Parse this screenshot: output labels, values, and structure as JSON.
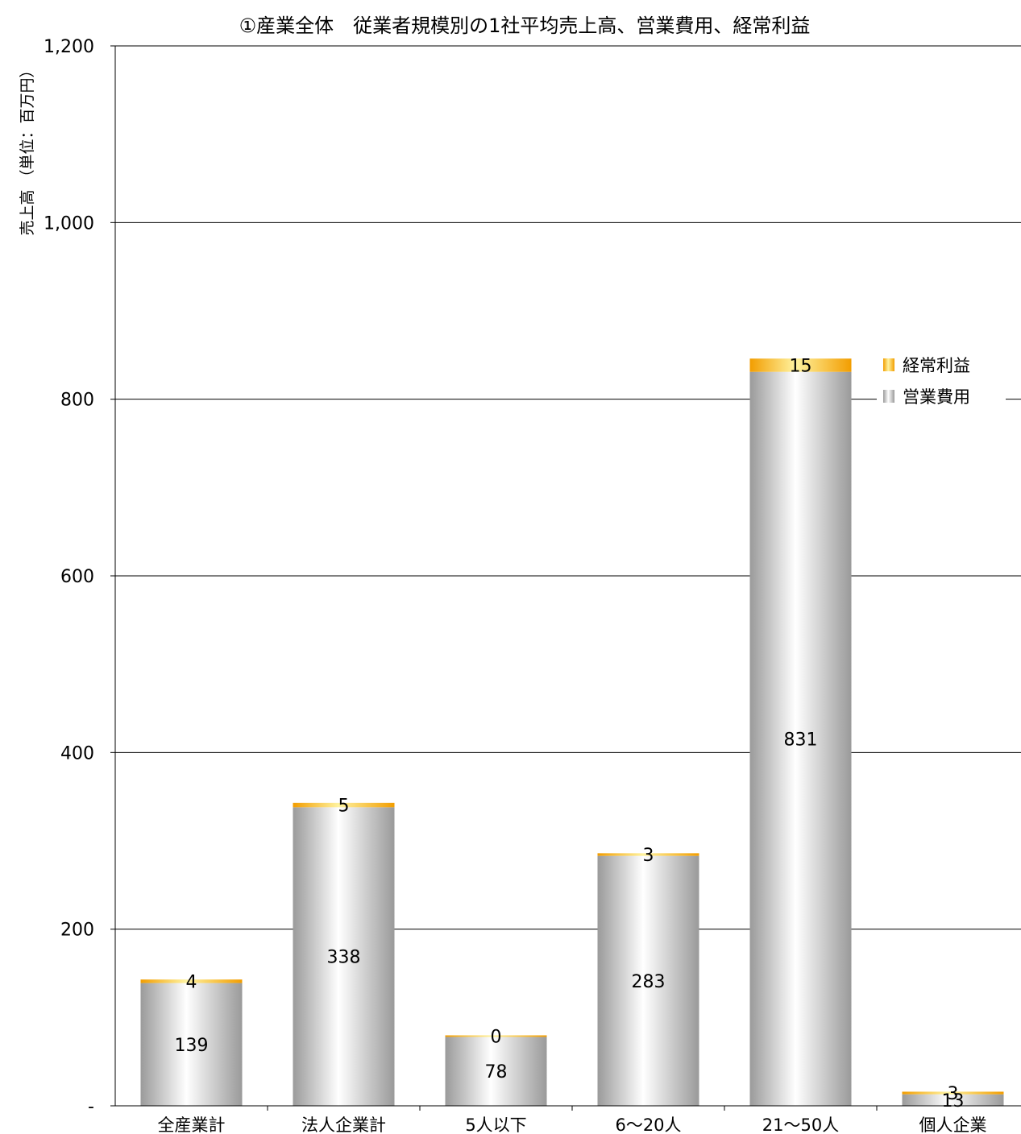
{
  "chart_data": {
    "type": "bar",
    "stacked": true,
    "title": "①産業全体　従業者規模別の1社平均売上高、営業費用、経常利益",
    "ylabel": "売上高 （単位：百万円）",
    "xlabel": "",
    "ylim": [
      0,
      1200
    ],
    "y_ticks": [
      {
        "value": 0,
        "label": "-"
      },
      {
        "value": 200,
        "label": "200"
      },
      {
        "value": 400,
        "label": "400"
      },
      {
        "value": 600,
        "label": "600"
      },
      {
        "value": 800,
        "label": "800"
      },
      {
        "value": 1000,
        "label": "1,000"
      },
      {
        "value": 1200,
        "label": "1,200"
      }
    ],
    "grid": true,
    "legend_position": "right",
    "categories": [
      "全産業計",
      "法人企業計",
      "5人以下",
      "6～20人",
      "21～50人",
      "個人企業"
    ],
    "series": [
      {
        "name": "営業費用",
        "values": [
          139,
          338,
          78,
          283,
          831,
          13
        ],
        "color": "#a0a0a0"
      },
      {
        "name": "経常利益",
        "values": [
          4,
          5,
          0,
          3,
          15,
          3
        ],
        "color": "#f5a300"
      }
    ]
  }
}
